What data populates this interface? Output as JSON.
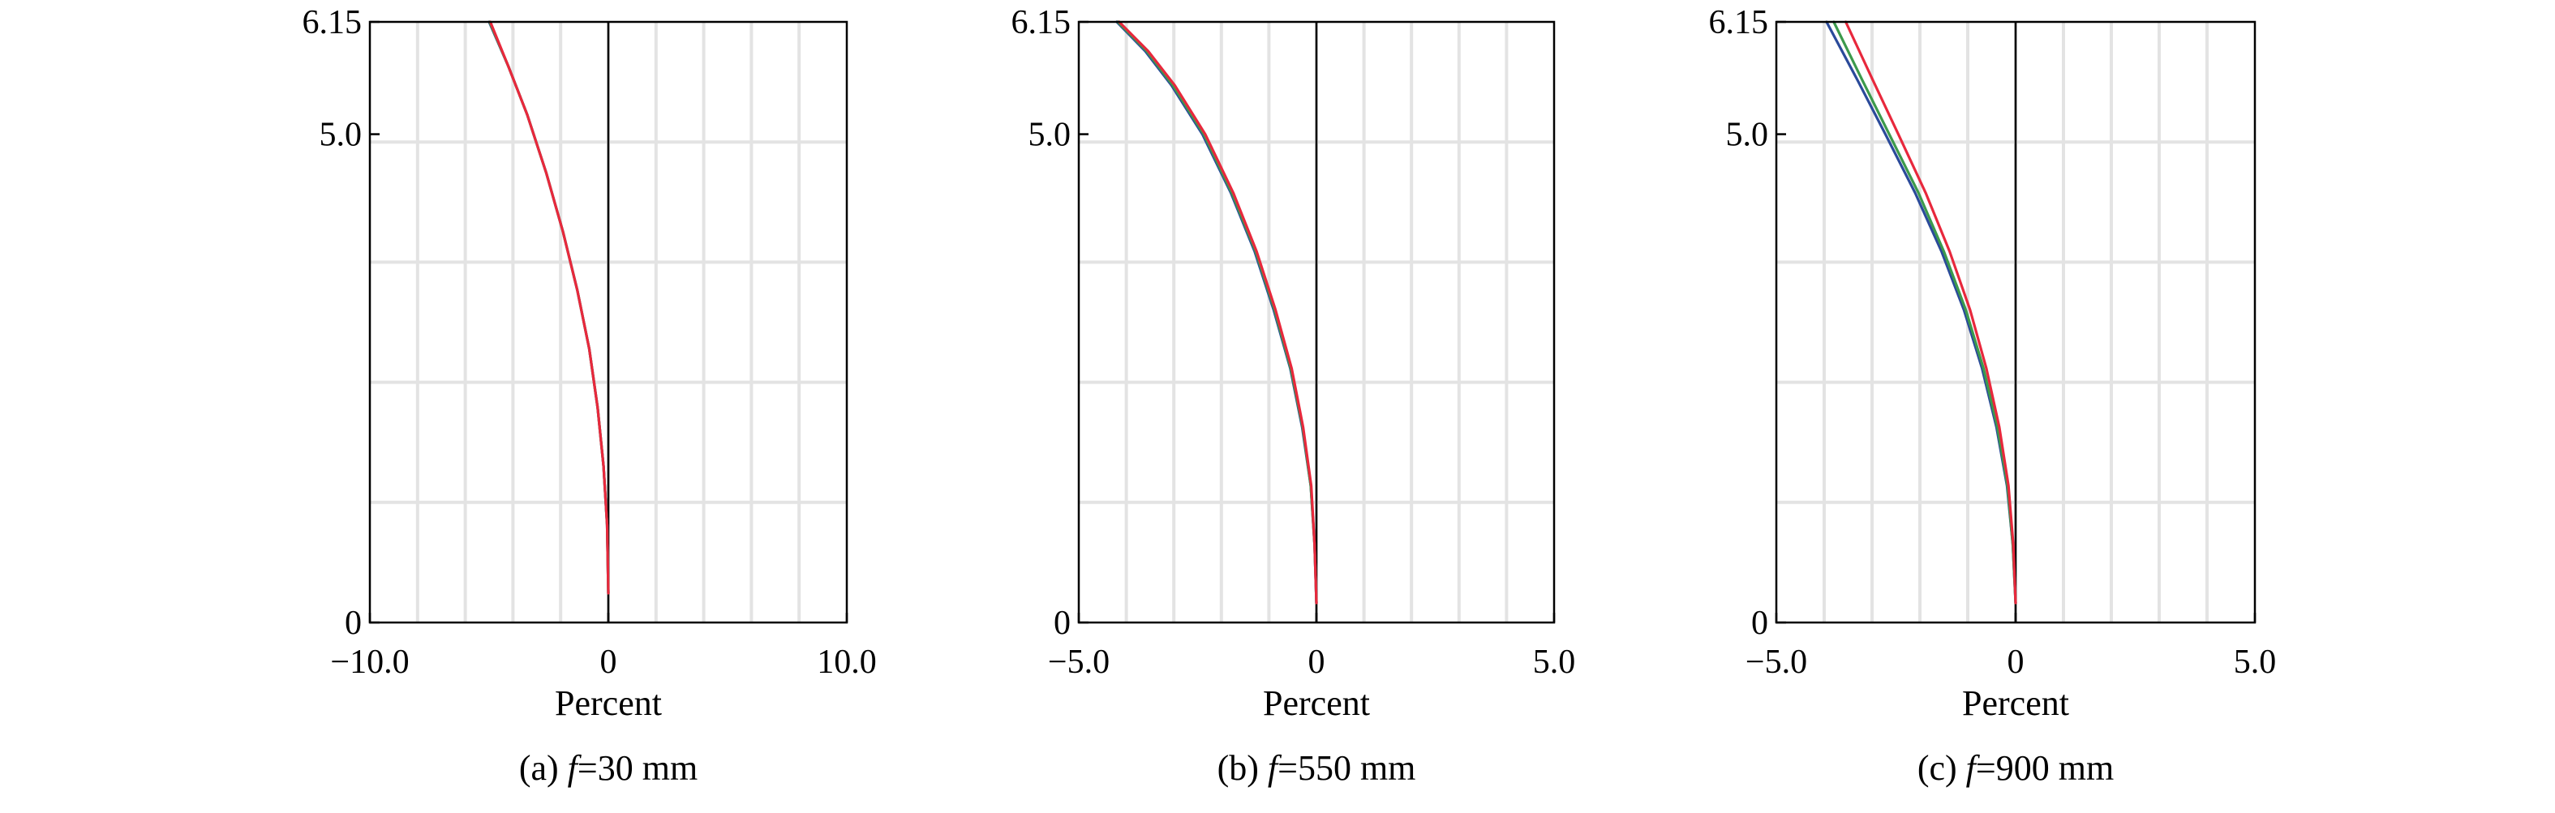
{
  "colors": {
    "blue": "#2a4a9a",
    "green": "#3c9a4c",
    "red": "#e8283c",
    "grid": "#e3e3e3"
  },
  "chart_data": [
    {
      "type": "line",
      "panel_label": "(a)",
      "caption": {
        "prefix": "(a) ",
        "var": "f",
        "suffix": "=30 mm"
      },
      "xlabel": "Percent",
      "xlim": [
        -10.0,
        10.0
      ],
      "ylim": [
        0,
        6.15
      ],
      "xticks": [
        "−10.0",
        "0",
        "10.0"
      ],
      "xtick_values": [
        -10.0,
        0,
        10.0
      ],
      "yticks": [
        "0",
        "5.0",
        "6.15"
      ],
      "ytick_values": [
        0,
        5.0,
        6.15
      ],
      "grid": true,
      "series": [
        {
          "color": "blue",
          "x": [
            0,
            -0.05,
            -0.2,
            -0.45,
            -0.8,
            -1.3,
            -1.9,
            -2.6,
            -3.4,
            -4.2,
            -5.0
          ],
          "y": [
            0.3,
            1.0,
            1.6,
            2.2,
            2.8,
            3.4,
            4.0,
            4.6,
            5.2,
            5.7,
            6.15
          ]
        },
        {
          "color": "green",
          "x": [
            0,
            -0.05,
            -0.2,
            -0.45,
            -0.8,
            -1.3,
            -1.9,
            -2.6,
            -3.4,
            -4.2,
            -4.98
          ],
          "y": [
            0.3,
            1.0,
            1.6,
            2.2,
            2.8,
            3.4,
            4.0,
            4.6,
            5.2,
            5.7,
            6.15
          ]
        },
        {
          "color": "red",
          "x": [
            0,
            -0.05,
            -0.2,
            -0.45,
            -0.8,
            -1.3,
            -1.9,
            -2.6,
            -3.4,
            -4.2,
            -4.95
          ],
          "y": [
            0.3,
            1.0,
            1.6,
            2.2,
            2.8,
            3.4,
            4.0,
            4.6,
            5.2,
            5.7,
            6.15
          ]
        }
      ]
    },
    {
      "type": "line",
      "panel_label": "(b)",
      "caption": {
        "prefix": "(b) ",
        "var": "f",
        "suffix": "=550 mm"
      },
      "xlabel": "Percent",
      "xlim": [
        -5.0,
        5.0
      ],
      "ylim": [
        0,
        6.15
      ],
      "xticks": [
        "−5.0",
        "0",
        "5.0"
      ],
      "xtick_values": [
        -5.0,
        0,
        5.0
      ],
      "yticks": [
        "0",
        "5.0",
        "6.15"
      ],
      "ytick_values": [
        0,
        5.0,
        6.15
      ],
      "grid": true,
      "series": [
        {
          "color": "blue",
          "x": [
            0,
            -0.04,
            -0.12,
            -0.3,
            -0.55,
            -0.9,
            -1.3,
            -1.8,
            -2.4,
            -3.05,
            -3.6,
            -4.2
          ],
          "y": [
            0.2,
            0.8,
            1.4,
            2.0,
            2.6,
            3.2,
            3.8,
            4.4,
            5.0,
            5.5,
            5.85,
            6.15
          ]
        },
        {
          "color": "green",
          "x": [
            0,
            -0.04,
            -0.12,
            -0.29,
            -0.54,
            -0.88,
            -1.28,
            -1.78,
            -2.37,
            -3.02,
            -3.57,
            -4.18
          ],
          "y": [
            0.2,
            0.8,
            1.4,
            2.0,
            2.6,
            3.2,
            3.8,
            4.4,
            5.0,
            5.5,
            5.85,
            6.15
          ]
        },
        {
          "color": "red",
          "x": [
            0,
            -0.04,
            -0.11,
            -0.28,
            -0.52,
            -0.86,
            -1.26,
            -1.75,
            -2.34,
            -2.98,
            -3.54,
            -4.15
          ],
          "y": [
            0.2,
            0.8,
            1.4,
            2.0,
            2.6,
            3.2,
            3.8,
            4.4,
            5.0,
            5.5,
            5.85,
            6.15
          ]
        }
      ]
    },
    {
      "type": "line",
      "panel_label": "(c)",
      "caption": {
        "prefix": "(c) ",
        "var": "f",
        "suffix": "=900 mm"
      },
      "xlabel": "Percent",
      "xlim": [
        -5.0,
        5.0
      ],
      "ylim": [
        0,
        6.15
      ],
      "xticks": [
        "−5.0",
        "0",
        "5.0"
      ],
      "xtick_values": [
        -5.0,
        0,
        5.0
      ],
      "yticks": [
        "0",
        "5.0",
        "6.15"
      ],
      "ytick_values": [
        0,
        5.0,
        6.15
      ],
      "grid": true,
      "series": [
        {
          "color": "blue",
          "x": [
            0,
            -0.06,
            -0.18,
            -0.4,
            -0.7,
            -1.08,
            -1.55,
            -2.1,
            -2.72,
            -3.3,
            -3.95
          ],
          "y": [
            0.2,
            0.8,
            1.4,
            2.0,
            2.6,
            3.2,
            3.8,
            4.4,
            5.0,
            5.55,
            6.15
          ]
        },
        {
          "color": "green",
          "x": [
            0,
            -0.06,
            -0.17,
            -0.38,
            -0.67,
            -1.04,
            -1.5,
            -2.03,
            -2.64,
            -3.2,
            -3.8
          ],
          "y": [
            0.2,
            0.8,
            1.4,
            2.0,
            2.6,
            3.2,
            3.8,
            4.4,
            5.0,
            5.55,
            6.15
          ]
        },
        {
          "color": "red",
          "x": [
            0,
            -0.05,
            -0.15,
            -0.34,
            -0.61,
            -0.95,
            -1.38,
            -1.88,
            -2.45,
            -2.98,
            -3.55
          ],
          "y": [
            0.2,
            0.8,
            1.4,
            2.0,
            2.6,
            3.2,
            3.8,
            4.4,
            5.0,
            5.55,
            6.15
          ]
        }
      ]
    }
  ]
}
